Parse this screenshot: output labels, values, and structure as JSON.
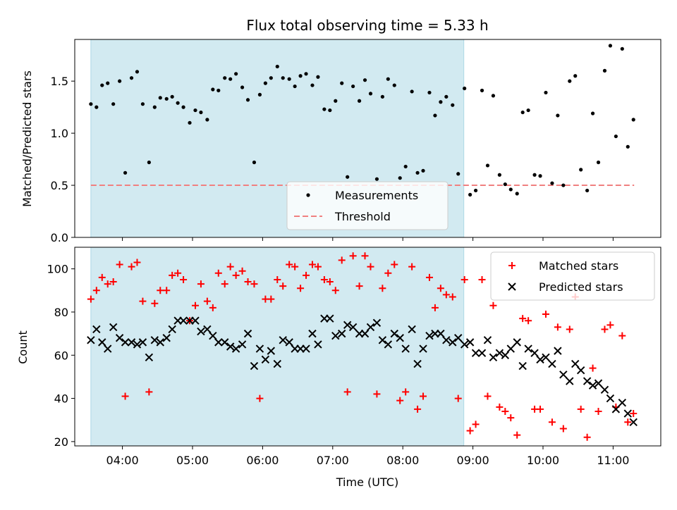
{
  "chart_data": {
    "title": "Flux total observing time = 5.33 h",
    "xlabel": "Time (UTC)",
    "x_tick_labels": [
      "04:00",
      "05:00",
      "06:00",
      "07:00",
      "08:00",
      "09:00",
      "10:00",
      "11:00"
    ],
    "x_ticks_hours": [
      4,
      5,
      6,
      7,
      8,
      9,
      10,
      11
    ],
    "xlim_hours": [
      3.32,
      11.68
    ],
    "shaded_span_hours": [
      3.55,
      8.87
    ],
    "colors": {
      "shade": "#add8e6",
      "measurements": "#000000",
      "threshold": "#f08080",
      "matched": "#ff0000",
      "predicted": "#000000"
    },
    "panels": [
      {
        "type": "scatter",
        "ylabel": "Matched/Predicted stars",
        "ylim": [
          0,
          1.9
        ],
        "y_ticks": [
          0.0,
          0.5,
          1.0,
          1.5
        ],
        "y_tick_labels": [
          "0.0",
          "0.5",
          "1.0",
          "1.5"
        ],
        "legend_position": "lower-center",
        "threshold": {
          "name": "Threshold",
          "value": 0.5,
          "x_range_hours": [
            3.55,
            11.3
          ]
        },
        "series": [
          {
            "name": "Measurements",
            "marker": "dot",
            "x": [
              3.55,
              3.63,
              3.71,
              3.79,
              3.87,
              3.96,
              4.04,
              4.13,
              4.21,
              4.29,
              4.38,
              4.46,
              4.54,
              4.63,
              4.71,
              4.79,
              4.87,
              4.96,
              5.04,
              5.12,
              5.21,
              5.29,
              5.37,
              5.46,
              5.54,
              5.62,
              5.71,
              5.79,
              5.88,
              5.96,
              6.04,
              6.12,
              6.21,
              6.29,
              6.38,
              6.46,
              6.54,
              6.62,
              6.71,
              6.79,
              6.88,
              6.96,
              7.04,
              7.13,
              7.21,
              7.29,
              7.38,
              7.46,
              7.54,
              7.63,
              7.71,
              7.79,
              7.88,
              7.96,
              8.04,
              8.13,
              8.21,
              8.29,
              8.38,
              8.46,
              8.54,
              8.62,
              8.71,
              8.79,
              8.88,
              8.96,
              9.04,
              9.13,
              9.21,
              9.29,
              9.38,
              9.46,
              9.54,
              9.63,
              9.71,
              9.79,
              9.88,
              9.96,
              10.04,
              10.13,
              10.21,
              10.29,
              10.38,
              10.46,
              10.54,
              10.63,
              10.71,
              10.79,
              10.88,
              10.96,
              11.04,
              11.13,
              11.21,
              11.29
            ],
            "y": [
              1.28,
              1.25,
              1.46,
              1.48,
              1.28,
              1.5,
              0.62,
              1.53,
              1.59,
              1.28,
              0.72,
              1.25,
              1.34,
              1.33,
              1.35,
              1.29,
              1.25,
              1.1,
              1.22,
              1.2,
              1.13,
              1.42,
              1.41,
              1.53,
              1.52,
              1.57,
              1.44,
              1.32,
              0.72,
              1.37,
              1.48,
              1.53,
              1.64,
              1.53,
              1.52,
              1.45,
              1.55,
              1.57,
              1.46,
              1.54,
              1.23,
              1.22,
              1.31,
              1.48,
              0.58,
              1.45,
              1.31,
              1.51,
              1.38,
              0.56,
              1.35,
              1.52,
              1.46,
              0.57,
              0.68,
              1.4,
              0.62,
              0.64,
              1.39,
              1.17,
              1.3,
              1.35,
              1.27,
              0.61,
              1.43,
              0.41,
              0.45,
              1.41,
              0.69,
              1.36,
              0.6,
              0.51,
              0.46,
              0.42,
              1.2,
              1.22,
              0.6,
              0.59,
              1.39,
              0.52,
              1.17,
              0.5,
              1.5,
              1.55,
              0.65,
              0.45,
              1.19,
              0.72,
              1.6,
              1.84,
              0.97,
              1.81,
              0.87,
              1.13
            ]
          }
        ]
      },
      {
        "type": "scatter",
        "ylabel": "Count",
        "ylim": [
          18,
          110
        ],
        "y_ticks": [
          20,
          40,
          60,
          80,
          100
        ],
        "y_tick_labels": [
          "20",
          "40",
          "60",
          "80",
          "100"
        ],
        "legend_position": "top-right",
        "series": [
          {
            "name": "Matched stars",
            "marker": "plus",
            "x": [
              3.55,
              3.63,
              3.71,
              3.79,
              3.87,
              3.96,
              4.04,
              4.13,
              4.21,
              4.29,
              4.38,
              4.46,
              4.54,
              4.63,
              4.71,
              4.79,
              4.87,
              4.96,
              5.04,
              5.12,
              5.21,
              5.29,
              5.37,
              5.46,
              5.54,
              5.62,
              5.71,
              5.79,
              5.88,
              5.96,
              6.04,
              6.12,
              6.21,
              6.29,
              6.38,
              6.46,
              6.54,
              6.62,
              6.71,
              6.79,
              6.88,
              6.96,
              7.04,
              7.13,
              7.21,
              7.29,
              7.38,
              7.46,
              7.54,
              7.63,
              7.71,
              7.79,
              7.88,
              7.96,
              8.04,
              8.13,
              8.21,
              8.29,
              8.38,
              8.46,
              8.54,
              8.62,
              8.71,
              8.79,
              8.88,
              8.96,
              9.04,
              9.13,
              9.21,
              9.29,
              9.38,
              9.46,
              9.54,
              9.63,
              9.71,
              9.79,
              9.88,
              9.96,
              10.04,
              10.13,
              10.21,
              10.29,
              10.38,
              10.46,
              10.54,
              10.63,
              10.71,
              10.79,
              10.88,
              10.96,
              11.04,
              11.13,
              11.21,
              11.29
            ],
            "y": [
              86,
              90,
              96,
              93,
              94,
              102,
              41,
              101,
              103,
              85,
              43,
              84,
              90,
              90,
              97,
              98,
              95,
              76,
              83,
              93,
              85,
              82,
              98,
              93,
              101,
              97,
              99,
              94,
              93,
              40,
              86,
              86,
              95,
              92,
              102,
              101,
              91,
              97,
              102,
              101,
              95,
              94,
              90,
              104,
              43,
              106,
              92,
              106,
              101,
              42,
              91,
              98,
              102,
              39,
              43,
              101,
              35,
              41,
              96,
              82,
              91,
              88,
              87,
              40,
              95,
              25,
              28,
              95,
              41,
              83,
              36,
              34,
              31,
              23,
              77,
              76,
              35,
              35,
              79,
              29,
              73,
              26,
              72,
              87,
              35,
              22,
              54,
              34,
              72,
              74,
              36,
              69,
              29,
              33
            ]
          },
          {
            "name": "Predicted stars",
            "marker": "x",
            "x": [
              3.55,
              3.63,
              3.71,
              3.79,
              3.87,
              3.96,
              4.04,
              4.13,
              4.21,
              4.29,
              4.38,
              4.46,
              4.54,
              4.63,
              4.71,
              4.79,
              4.87,
              4.96,
              5.04,
              5.12,
              5.21,
              5.29,
              5.37,
              5.46,
              5.54,
              5.62,
              5.71,
              5.79,
              5.88,
              5.96,
              6.04,
              6.12,
              6.21,
              6.29,
              6.38,
              6.46,
              6.54,
              6.62,
              6.71,
              6.79,
              6.88,
              6.96,
              7.04,
              7.13,
              7.21,
              7.29,
              7.38,
              7.46,
              7.54,
              7.63,
              7.71,
              7.79,
              7.88,
              7.96,
              8.04,
              8.13,
              8.21,
              8.29,
              8.38,
              8.46,
              8.54,
              8.62,
              8.71,
              8.79,
              8.88,
              8.96,
              9.04,
              9.13,
              9.21,
              9.29,
              9.38,
              9.46,
              9.54,
              9.63,
              9.71,
              9.79,
              9.88,
              9.96,
              10.04,
              10.13,
              10.21,
              10.29,
              10.38,
              10.46,
              10.54,
              10.63,
              10.71,
              10.79,
              10.88,
              10.96,
              11.04,
              11.13,
              11.21,
              11.29
            ],
            "y": [
              67,
              72,
              66,
              63,
              73,
              68,
              66,
              66,
              65,
              66,
              59,
              67,
              66,
              68,
              72,
              76,
              76,
              76,
              76,
              71,
              72,
              69,
              66,
              66,
              64,
              63,
              65,
              70,
              55,
              63,
              58,
              62,
              56,
              67,
              66,
              63,
              63,
              63,
              70,
              65,
              77,
              77,
              69,
              70,
              74,
              73,
              70,
              70,
              73,
              75,
              67,
              65,
              70,
              68,
              63,
              72,
              56,
              63,
              69,
              70,
              70,
              67,
              66,
              68,
              65,
              66,
              61,
              61,
              67,
              59,
              61,
              60,
              63,
              66,
              55,
              63,
              61,
              58,
              59,
              56,
              62,
              51,
              48,
              56,
              53,
              48,
              46,
              47,
              44,
              40,
              35,
              38,
              33,
              29
            ]
          }
        ]
      }
    ]
  }
}
